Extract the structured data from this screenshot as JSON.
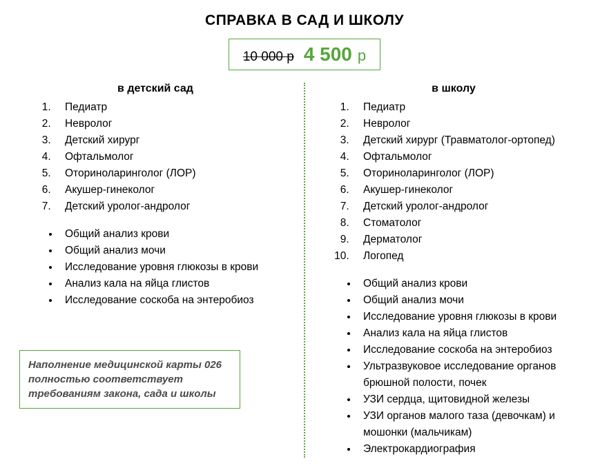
{
  "title": "СПРАВКА В САД И ШКОЛУ",
  "price": {
    "old": "10 000 р",
    "new": "4 500",
    "currency": "р"
  },
  "colors": {
    "accent": "#56a53c",
    "text": "#000000",
    "note_text": "#4a4a4a",
    "background": "#ffffff"
  },
  "left": {
    "heading": "в детский сад",
    "doctors": [
      "Педиатр",
      "Невролог",
      "Детский хирург",
      "Офтальмолог",
      "Оториноларинголог (ЛОР)",
      "Акушер-гинеколог",
      "Детский уролог-андролог"
    ],
    "tests": [
      "Общий анализ крови",
      "Общий анализ мочи",
      "Исследование уровня глюкозы в крови",
      "Анализ кала на яйца глистов",
      "Исследование соскоба на энтеробиоз"
    ]
  },
  "right": {
    "heading": "в школу",
    "doctors": [
      "Педиатр",
      "Невролог",
      "Детский хирург (Травматолог-ортопед)",
      "Офтальмолог",
      "Оториноларинголог (ЛОР)",
      "Акушер-гинеколог",
      "Детский уролог-андролог",
      "Стоматолог",
      "Дерматолог",
      "Логопед"
    ],
    "tests": [
      "Общий анализ крови",
      "Общий анализ мочи",
      "Исследование уровня глюкозы в крови",
      "Анализ кала на яйца глистов",
      "Исследование соскоба на энтеробиоз",
      "Ультразвуковое исследование органов брюшной полости, почек",
      "УЗИ сердца, щитовидной железы",
      "УЗИ органов малого таза (девочкам) и мошонки (мальчикам)",
      "Электрокардиография"
    ]
  },
  "note": "Наполнение медицинской карты 026 полностью соответствует требованиям закона, сада и школы"
}
